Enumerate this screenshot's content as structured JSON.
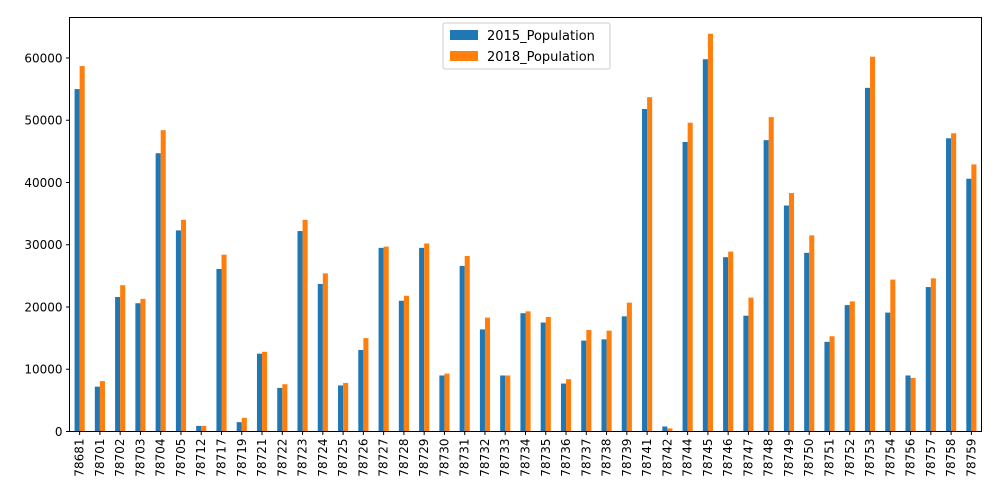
{
  "chart_data": {
    "type": "bar",
    "title": "",
    "xlabel": "",
    "ylabel": "",
    "ylim": [
      0,
      66500
    ],
    "yticks": [
      0,
      10000,
      20000,
      30000,
      40000,
      50000,
      60000
    ],
    "legend_position": "top-center",
    "grid": false,
    "categories": [
      "78681",
      "78701",
      "78702",
      "78703",
      "78704",
      "78705",
      "78712",
      "78717",
      "78719",
      "78721",
      "78722",
      "78723",
      "78724",
      "78725",
      "78726",
      "78727",
      "78728",
      "78729",
      "78730",
      "78731",
      "78732",
      "78733",
      "78734",
      "78735",
      "78736",
      "78737",
      "78738",
      "78739",
      "78741",
      "78742",
      "78744",
      "78745",
      "78746",
      "78747",
      "78748",
      "78749",
      "78750",
      "78751",
      "78752",
      "78753",
      "78754",
      "78756",
      "78757",
      "78758",
      "78759"
    ],
    "series": [
      {
        "name": "2015_Population",
        "color": "#1f77b4",
        "values": [
          55000,
          7200,
          21600,
          20600,
          44700,
          32300,
          900,
          26100,
          1500,
          12500,
          7000,
          32200,
          23700,
          7400,
          13100,
          29500,
          21000,
          29500,
          9000,
          26600,
          16400,
          9000,
          19000,
          17500,
          7700,
          14600,
          14800,
          18500,
          51800,
          800,
          46500,
          59800,
          28000,
          18600,
          46800,
          36300,
          28700,
          14400,
          20300,
          55200,
          19100,
          9000,
          23200,
          47100,
          40600
        ]
      },
      {
        "name": "2018_Population",
        "color": "#ff7f0e",
        "values": [
          58700,
          8100,
          23500,
          21300,
          48400,
          34000,
          900,
          28400,
          2200,
          12800,
          7600,
          34000,
          25400,
          7800,
          15000,
          29700,
          21800,
          30200,
          9300,
          28200,
          18300,
          9000,
          19300,
          18400,
          8400,
          16300,
          16200,
          20700,
          53700,
          500,
          49600,
          63900,
          28900,
          21500,
          50500,
          38300,
          31500,
          15300,
          20900,
          60200,
          24400,
          8600,
          24600,
          47900,
          42900
        ]
      }
    ]
  }
}
